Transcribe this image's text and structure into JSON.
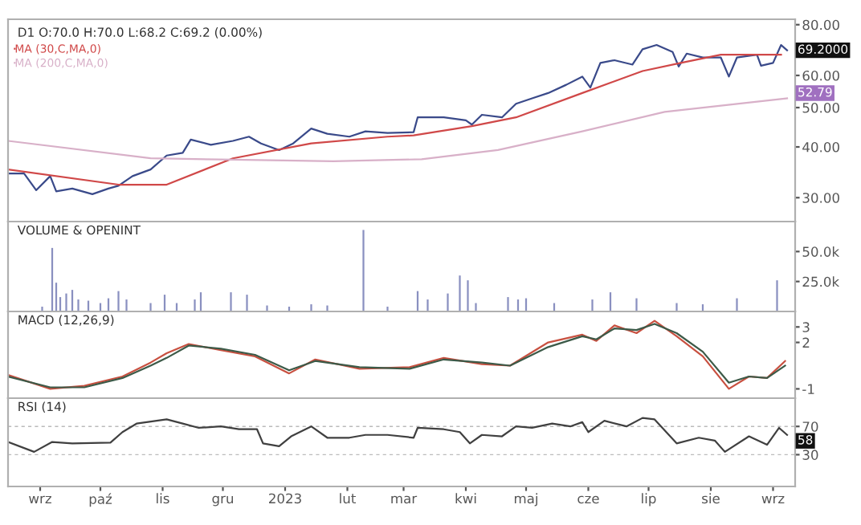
{
  "chart_data": [
    {
      "type": "line",
      "title": "D1 O:70.0 H:70.0 L:68.2 C:69.2 (0.00%)",
      "log": "y",
      "legend": "top left",
      "tick_labels": "y",
      "xlim": [
        "2022-08-16",
        "2023-09-12"
      ],
      "ylim": [
        26.2,
        82.5
      ],
      "yticks": [
        {
          "value": 30,
          "label": "30.00"
        },
        {
          "value": 40,
          "label": "40.00"
        },
        {
          "value": 50,
          "label": "50.00"
        },
        {
          "value": 60,
          "label": "60.00"
        },
        {
          "value": 80,
          "label": "80.00"
        }
      ],
      "series": [
        {
          "color": "#3a4a8a",
          "x": [
            "2022-08-16",
            "2022-08-24",
            "2022-08-30",
            "2022-09-06",
            "2022-09-09",
            "2022-09-17",
            "2022-09-27",
            "2022-10-05",
            "2022-10-10",
            "2022-10-17",
            "2022-10-26",
            "2022-11-03",
            "2022-11-11",
            "2022-11-15",
            "2022-11-25",
            "2022-12-06",
            "2022-12-14",
            "2022-12-20",
            "2022-12-29",
            "2023-01-05",
            "2023-01-14",
            "2023-01-22",
            "2023-02-02",
            "2023-02-10",
            "2023-02-21",
            "2023-03-06",
            "2023-03-08",
            "2023-03-21",
            "2023-04-01",
            "2023-04-04",
            "2023-04-09",
            "2023-04-19",
            "2023-04-26",
            "2023-05-04",
            "2023-05-12",
            "2023-05-21",
            "2023-05-29",
            "2023-06-02",
            "2023-06-07",
            "2023-06-14",
            "2023-06-23",
            "2023-06-28",
            "2023-07-05",
            "2023-07-13",
            "2023-07-16",
            "2023-07-20",
            "2023-07-28",
            "2023-08-06",
            "2023-08-10",
            "2023-08-14",
            "2023-08-24",
            "2023-08-26",
            "2023-09-01",
            "2023-09-05",
            "2023-09-08"
          ],
          "values": [
            34.4,
            34.4,
            31.3,
            33.9,
            31.1,
            31.6,
            30.6,
            31.6,
            32.1,
            33.9,
            35.2,
            38.1,
            38.7,
            41.7,
            40.5,
            41.4,
            42.4,
            40.8,
            39.3,
            40.8,
            44.4,
            43.1,
            42.4,
            43.7,
            43.3,
            43.5,
            47.3,
            47.3,
            46.5,
            45.4,
            48.0,
            47.3,
            51.1,
            52.7,
            54.3,
            56.9,
            59.6,
            56.0,
            64.4,
            65.4,
            63.8,
            69.6,
            71.3,
            68.5,
            63.1,
            67.9,
            66.4,
            66.4,
            59.6,
            66.4,
            67.5,
            63.4,
            64.4,
            71.3,
            69.2
          ]
        },
        {
          "name": "MA (30,C,MA,0)",
          "color": "#d04848",
          "x": [
            "2022-08-16",
            "2022-10-10",
            "2022-11-03",
            "2022-12-06",
            "2023-01-14",
            "2023-02-21",
            "2023-03-06",
            "2023-04-04",
            "2023-04-26",
            "2023-05-29",
            "2023-06-28",
            "2023-07-17",
            "2023-08-06",
            "2023-09-05"
          ],
          "values": [
            35.2,
            32.3,
            32.3,
            37.5,
            40.8,
            42.4,
            42.7,
            45.0,
            47.3,
            54.3,
            61.5,
            64.4,
            67.5,
            67.5
          ]
        },
        {
          "name": "MA (200,C,MA,0)",
          "color": "#d8b0c8",
          "x": [
            "2022-08-16",
            "2022-10-26",
            "2022-12-06",
            "2023-01-25",
            "2023-03-10",
            "2023-04-17",
            "2023-05-29",
            "2023-07-09",
            "2023-09-08"
          ],
          "values": [
            41.4,
            37.5,
            37.2,
            36.9,
            37.3,
            39.3,
            43.7,
            48.8,
            52.7
          ]
        }
      ],
      "annotations": [
        {
          "text": "69.2000",
          "x": "2023-09-08",
          "y": 69.2
        },
        {
          "text": "52.79",
          "x": "2023-09-08",
          "y": 52.79
        }
      ]
    },
    {
      "type": "bar",
      "title": "VOLUME & OPENINT",
      "tick_labels": "y",
      "color": "#8a90c0",
      "xlim": [
        "2022-08-16",
        "2023-09-12"
      ],
      "ylim": [
        0,
        75000
      ],
      "yticks": [
        {
          "value": 25000,
          "label": "25.0k"
        },
        {
          "value": 50000,
          "label": "50.0k"
        }
      ],
      "x": [
        "2022-09-02",
        "2022-09-07",
        "2022-09-09",
        "2022-09-11",
        "2022-09-14",
        "2022-09-17",
        "2022-09-20",
        "2022-09-25",
        "2022-10-01",
        "2022-10-05",
        "2022-10-10",
        "2022-10-14",
        "2022-10-26",
        "2022-11-02",
        "2022-11-08",
        "2022-11-17",
        "2022-11-20",
        "2022-12-05",
        "2022-12-13",
        "2022-12-23",
        "2023-01-03",
        "2023-01-14",
        "2023-01-22",
        "2023-02-09",
        "2023-02-21",
        "2023-03-08",
        "2023-03-13",
        "2023-03-23",
        "2023-03-29",
        "2023-04-02",
        "2023-04-06",
        "2023-04-22",
        "2023-04-27",
        "2023-05-01",
        "2023-05-15",
        "2023-06-03",
        "2023-06-12",
        "2023-06-25",
        "2023-07-15",
        "2023-07-28",
        "2023-08-14",
        "2023-09-03"
      ],
      "values": [
        4000,
        53000,
        24000,
        12000,
        15000,
        18000,
        10000,
        9000,
        7000,
        11000,
        17000,
        10000,
        7000,
        14000,
        7000,
        10000,
        16000,
        16000,
        14000,
        5000,
        4000,
        6000,
        5000,
        68000,
        4000,
        17000,
        10000,
        15000,
        30000,
        26000,
        7000,
        12000,
        10000,
        11000,
        7000,
        10000,
        16000,
        11000,
        7000,
        6000,
        11000,
        26000
      ]
    },
    {
      "type": "line",
      "title": "MACD (12,26,9)",
      "tick_labels": "y",
      "xlim": [
        "2022-08-16",
        "2023-09-12"
      ],
      "ylim": [
        -1.6,
        4.0
      ],
      "yticks": [
        -1,
        2,
        3
      ],
      "series": [
        {
          "color": "#c85040",
          "x": [
            "2022-08-16",
            "2022-09-06",
            "2022-09-23",
            "2022-10-12",
            "2022-10-26",
            "2022-11-03",
            "2022-11-14",
            "2022-11-30",
            "2022-12-17",
            "2023-01-03",
            "2023-01-16",
            "2023-02-07",
            "2023-03-04",
            "2023-03-21",
            "2023-04-09",
            "2023-04-23",
            "2023-05-12",
            "2023-05-29",
            "2023-06-05",
            "2023-06-14",
            "2023-06-25",
            "2023-07-04",
            "2023-07-15",
            "2023-07-28",
            "2023-08-10",
            "2023-08-20",
            "2023-08-29",
            "2023-09-07"
          ],
          "values": [
            -0.1,
            -1.0,
            -0.8,
            -0.2,
            0.7,
            1.3,
            1.9,
            1.5,
            1.1,
            0.0,
            0.9,
            0.3,
            0.4,
            1.0,
            0.6,
            0.5,
            2.0,
            2.5,
            2.1,
            3.1,
            2.6,
            3.4,
            2.4,
            1.1,
            -1.0,
            -0.2,
            -0.3,
            0.8
          ]
        },
        {
          "color": "#3c5a48",
          "x": [
            "2022-08-16",
            "2022-09-06",
            "2022-09-23",
            "2022-10-12",
            "2022-10-26",
            "2022-11-03",
            "2022-11-14",
            "2022-11-30",
            "2022-12-17",
            "2023-01-03",
            "2023-01-16",
            "2023-02-07",
            "2023-03-04",
            "2023-03-21",
            "2023-04-09",
            "2023-04-23",
            "2023-05-12",
            "2023-05-29",
            "2023-06-05",
            "2023-06-14",
            "2023-06-25",
            "2023-07-04",
            "2023-07-15",
            "2023-07-28",
            "2023-08-10",
            "2023-08-20",
            "2023-08-29",
            "2023-09-07"
          ],
          "values": [
            -0.2,
            -0.9,
            -0.9,
            -0.3,
            0.5,
            1.0,
            1.8,
            1.6,
            1.2,
            0.2,
            0.8,
            0.4,
            0.3,
            0.9,
            0.7,
            0.5,
            1.7,
            2.4,
            2.2,
            2.9,
            2.8,
            3.2,
            2.6,
            1.4,
            -0.6,
            -0.2,
            -0.3,
            0.5
          ]
        }
      ]
    },
    {
      "type": "line",
      "title": "RSI (14)",
      "grid": "y",
      "color": "#404040",
      "xlim": [
        "2022-08-16",
        "2023-09-12"
      ],
      "ylim": [
        -15,
        110
      ],
      "yticks": [
        30,
        70
      ],
      "xticks": [
        {
          "value": "2022-09-01",
          "label": "wrz"
        },
        {
          "value": "2022-10-01",
          "label": "paź"
        },
        {
          "value": "2022-11-01",
          "label": "lis"
        },
        {
          "value": "2022-12-01",
          "label": "gru"
        },
        {
          "value": "2023-01-01",
          "label": "2023"
        },
        {
          "value": "2023-02-01",
          "label": "lut"
        },
        {
          "value": "2023-03-01",
          "label": "mar"
        },
        {
          "value": "2023-04-01",
          "label": "kwi"
        },
        {
          "value": "2023-05-01",
          "label": "maj"
        },
        {
          "value": "2023-06-01",
          "label": "cze"
        },
        {
          "value": "2023-07-01",
          "label": "lip"
        },
        {
          "value": "2023-08-01",
          "label": "sie"
        },
        {
          "value": "2023-09-01",
          "label": "wrz"
        }
      ],
      "x": [
        "2022-08-16",
        "2022-08-29",
        "2022-09-07",
        "2022-09-17",
        "2022-10-06",
        "2022-10-12",
        "2022-10-19",
        "2022-11-03",
        "2022-11-11",
        "2022-11-19",
        "2022-11-30",
        "2022-12-09",
        "2022-12-18",
        "2022-12-21",
        "2022-12-29",
        "2023-01-04",
        "2023-01-14",
        "2023-01-22",
        "2023-02-02",
        "2023-02-10",
        "2023-02-21",
        "2023-03-06",
        "2023-03-08",
        "2023-03-21",
        "2023-03-29",
        "2023-04-03",
        "2023-04-09",
        "2023-04-19",
        "2023-04-26",
        "2023-05-04",
        "2023-05-14",
        "2023-05-23",
        "2023-05-29",
        "2023-06-01",
        "2023-06-09",
        "2023-06-20",
        "2023-06-28",
        "2023-07-04",
        "2023-07-15",
        "2023-07-26",
        "2023-08-03",
        "2023-08-08",
        "2023-08-20",
        "2023-08-29",
        "2023-09-04",
        "2023-09-08"
      ],
      "values": [
        48,
        34,
        48,
        46,
        47,
        62,
        74,
        80,
        74,
        68,
        70,
        66,
        66,
        46,
        42,
        56,
        70,
        54,
        54,
        58,
        58,
        54,
        68,
        66,
        62,
        46,
        58,
        56,
        70,
        68,
        74,
        70,
        76,
        62,
        78,
        70,
        82,
        80,
        46,
        54,
        50,
        34,
        56,
        44,
        68,
        58
      ],
      "annotations": [
        {
          "text": "58",
          "x": "2023-09-08",
          "y": 58
        }
      ]
    }
  ]
}
